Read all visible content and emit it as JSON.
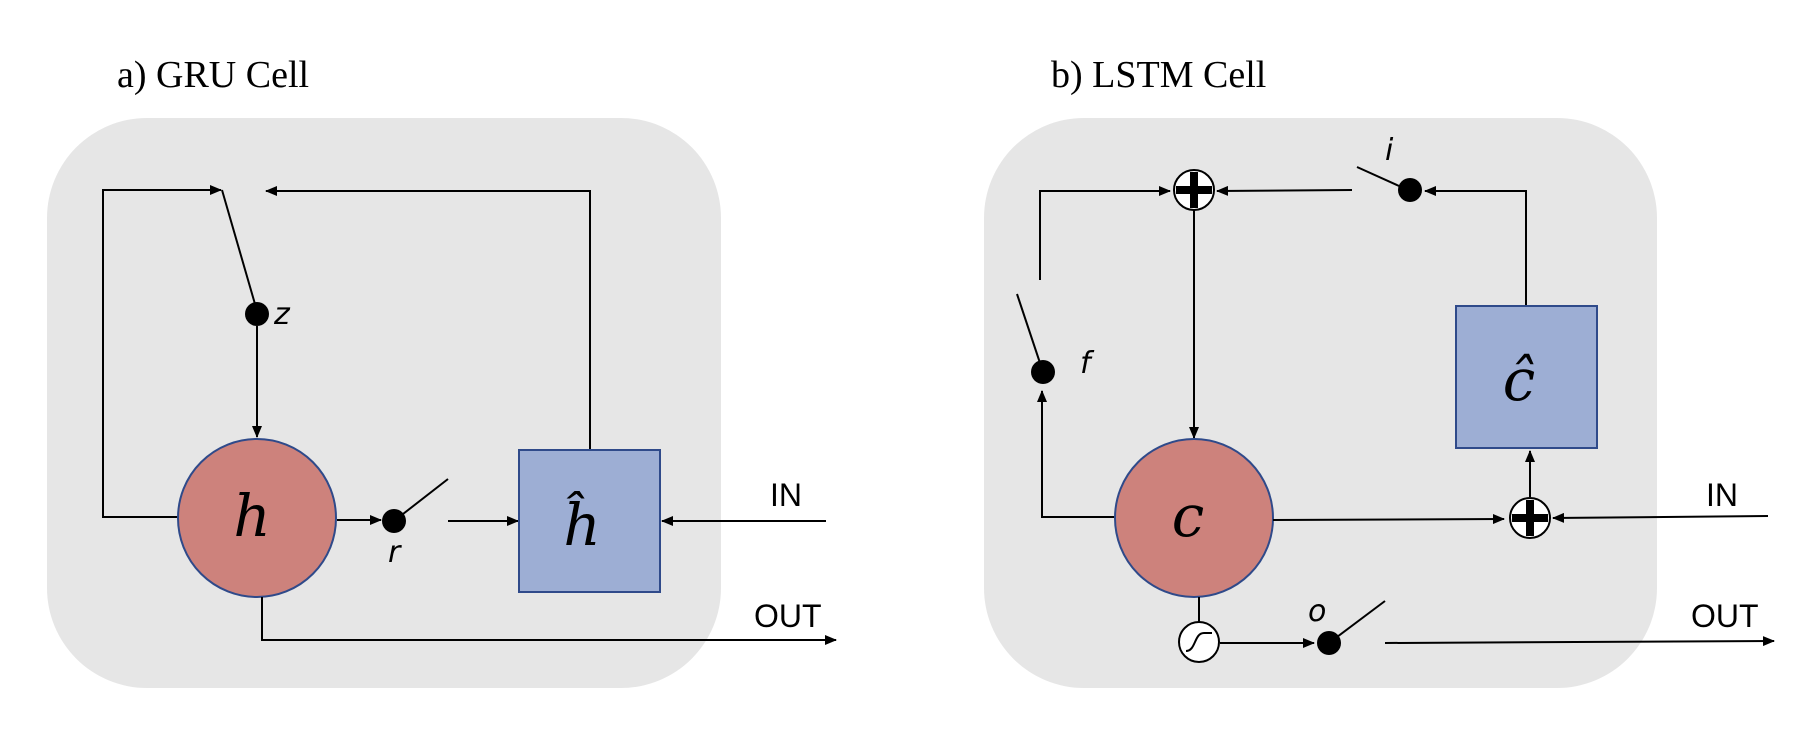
{
  "colors": {
    "cell_background": "#e6e6e6",
    "state_circle": "#cd827c",
    "candidate_box": "#9daed4",
    "outline": "#2f4a8a",
    "line": "#000000"
  },
  "gru": {
    "title": "a) GRU Cell",
    "state_symbol": "h",
    "candidate_symbol": "ĥ",
    "gates": {
      "update": "z",
      "reset": "r"
    },
    "input_label": "IN",
    "output_label": "OUT"
  },
  "lstm": {
    "title": "b) LSTM Cell",
    "state_symbol": "c",
    "candidate_symbol": "ĉ",
    "gates": {
      "forget": "f",
      "input": "i",
      "output": "o"
    },
    "input_label": "IN",
    "output_label": "OUT",
    "icons": [
      "plus-node-icon",
      "sigmoid-icon"
    ]
  }
}
